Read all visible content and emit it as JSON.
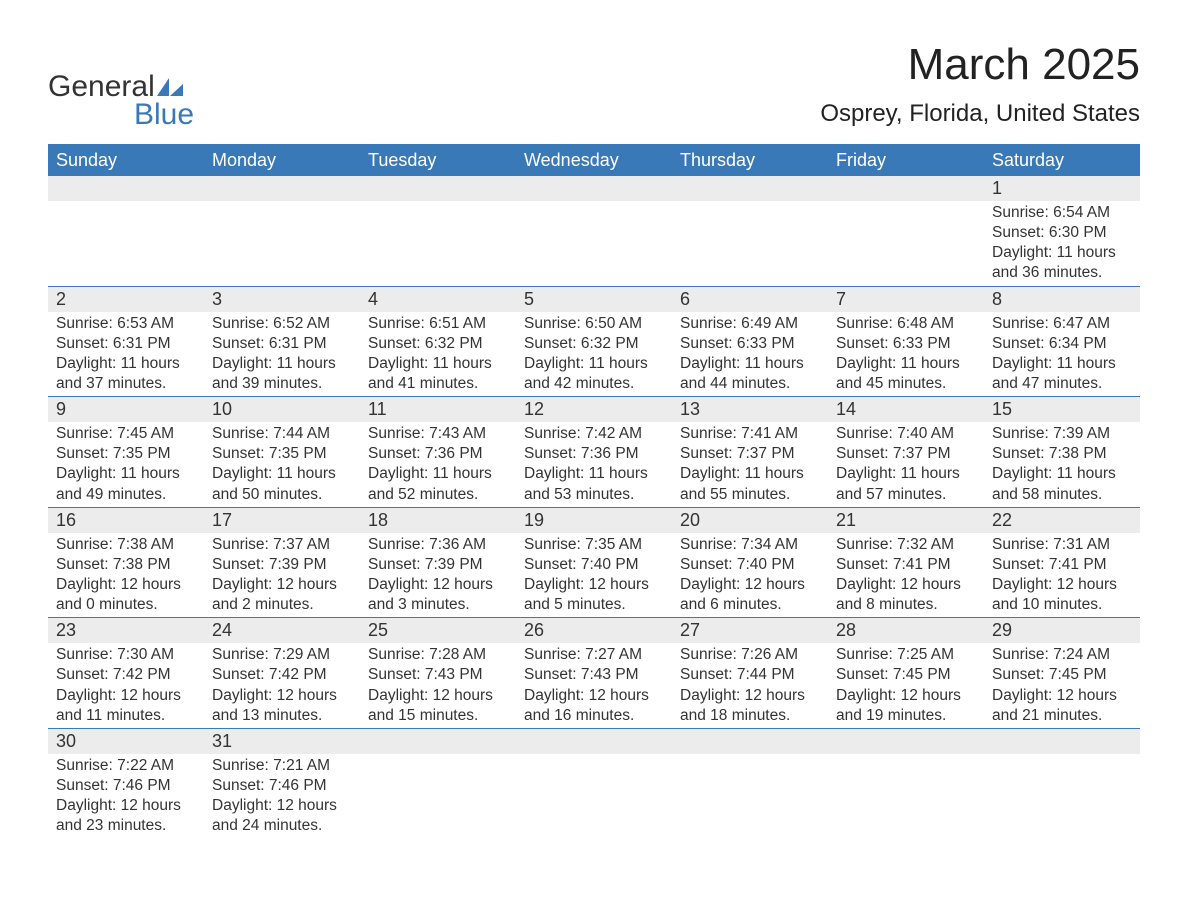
{
  "logo": {
    "word1": "General",
    "word2": "Blue",
    "text_color": "#333333",
    "accent_color": "#3a79b7"
  },
  "title": "March 2025",
  "subtitle": "Osprey, Florida, United States",
  "colors": {
    "header_bg": "#3a79b7",
    "header_text": "#ffffff",
    "daynum_bg": "#ececec",
    "body_text": "#333333",
    "border": "#3a79b7",
    "page_bg": "#ffffff"
  },
  "fonts": {
    "title_size_pt": 33,
    "subtitle_size_pt": 18,
    "header_size_pt": 14,
    "body_size_pt": 12
  },
  "week_headers": [
    "Sunday",
    "Monday",
    "Tuesday",
    "Wednesday",
    "Thursday",
    "Friday",
    "Saturday"
  ],
  "weeks": [
    [
      {
        "day": null
      },
      {
        "day": null
      },
      {
        "day": null
      },
      {
        "day": null
      },
      {
        "day": null
      },
      {
        "day": null
      },
      {
        "day": 1,
        "sunrise": "6:54 AM",
        "sunset": "6:30 PM",
        "daylight_hours": 11,
        "daylight_minutes": 36
      }
    ],
    [
      {
        "day": 2,
        "sunrise": "6:53 AM",
        "sunset": "6:31 PM",
        "daylight_hours": 11,
        "daylight_minutes": 37
      },
      {
        "day": 3,
        "sunrise": "6:52 AM",
        "sunset": "6:31 PM",
        "daylight_hours": 11,
        "daylight_minutes": 39
      },
      {
        "day": 4,
        "sunrise": "6:51 AM",
        "sunset": "6:32 PM",
        "daylight_hours": 11,
        "daylight_minutes": 41
      },
      {
        "day": 5,
        "sunrise": "6:50 AM",
        "sunset": "6:32 PM",
        "daylight_hours": 11,
        "daylight_minutes": 42
      },
      {
        "day": 6,
        "sunrise": "6:49 AM",
        "sunset": "6:33 PM",
        "daylight_hours": 11,
        "daylight_minutes": 44
      },
      {
        "day": 7,
        "sunrise": "6:48 AM",
        "sunset": "6:33 PM",
        "daylight_hours": 11,
        "daylight_minutes": 45
      },
      {
        "day": 8,
        "sunrise": "6:47 AM",
        "sunset": "6:34 PM",
        "daylight_hours": 11,
        "daylight_minutes": 47
      }
    ],
    [
      {
        "day": 9,
        "sunrise": "7:45 AM",
        "sunset": "7:35 PM",
        "daylight_hours": 11,
        "daylight_minutes": 49
      },
      {
        "day": 10,
        "sunrise": "7:44 AM",
        "sunset": "7:35 PM",
        "daylight_hours": 11,
        "daylight_minutes": 50
      },
      {
        "day": 11,
        "sunrise": "7:43 AM",
        "sunset": "7:36 PM",
        "daylight_hours": 11,
        "daylight_minutes": 52
      },
      {
        "day": 12,
        "sunrise": "7:42 AM",
        "sunset": "7:36 PM",
        "daylight_hours": 11,
        "daylight_minutes": 53
      },
      {
        "day": 13,
        "sunrise": "7:41 AM",
        "sunset": "7:37 PM",
        "daylight_hours": 11,
        "daylight_minutes": 55
      },
      {
        "day": 14,
        "sunrise": "7:40 AM",
        "sunset": "7:37 PM",
        "daylight_hours": 11,
        "daylight_minutes": 57
      },
      {
        "day": 15,
        "sunrise": "7:39 AM",
        "sunset": "7:38 PM",
        "daylight_hours": 11,
        "daylight_minutes": 58
      }
    ],
    [
      {
        "day": 16,
        "sunrise": "7:38 AM",
        "sunset": "7:38 PM",
        "daylight_hours": 12,
        "daylight_minutes": 0
      },
      {
        "day": 17,
        "sunrise": "7:37 AM",
        "sunset": "7:39 PM",
        "daylight_hours": 12,
        "daylight_minutes": 2
      },
      {
        "day": 18,
        "sunrise": "7:36 AM",
        "sunset": "7:39 PM",
        "daylight_hours": 12,
        "daylight_minutes": 3
      },
      {
        "day": 19,
        "sunrise": "7:35 AM",
        "sunset": "7:40 PM",
        "daylight_hours": 12,
        "daylight_minutes": 5
      },
      {
        "day": 20,
        "sunrise": "7:34 AM",
        "sunset": "7:40 PM",
        "daylight_hours": 12,
        "daylight_minutes": 6
      },
      {
        "day": 21,
        "sunrise": "7:32 AM",
        "sunset": "7:41 PM",
        "daylight_hours": 12,
        "daylight_minutes": 8
      },
      {
        "day": 22,
        "sunrise": "7:31 AM",
        "sunset": "7:41 PM",
        "daylight_hours": 12,
        "daylight_minutes": 10
      }
    ],
    [
      {
        "day": 23,
        "sunrise": "7:30 AM",
        "sunset": "7:42 PM",
        "daylight_hours": 12,
        "daylight_minutes": 11
      },
      {
        "day": 24,
        "sunrise": "7:29 AM",
        "sunset": "7:42 PM",
        "daylight_hours": 12,
        "daylight_minutes": 13
      },
      {
        "day": 25,
        "sunrise": "7:28 AM",
        "sunset": "7:43 PM",
        "daylight_hours": 12,
        "daylight_minutes": 15
      },
      {
        "day": 26,
        "sunrise": "7:27 AM",
        "sunset": "7:43 PM",
        "daylight_hours": 12,
        "daylight_minutes": 16
      },
      {
        "day": 27,
        "sunrise": "7:26 AM",
        "sunset": "7:44 PM",
        "daylight_hours": 12,
        "daylight_minutes": 18
      },
      {
        "day": 28,
        "sunrise": "7:25 AM",
        "sunset": "7:45 PM",
        "daylight_hours": 12,
        "daylight_minutes": 19
      },
      {
        "day": 29,
        "sunrise": "7:24 AM",
        "sunset": "7:45 PM",
        "daylight_hours": 12,
        "daylight_minutes": 21
      }
    ],
    [
      {
        "day": 30,
        "sunrise": "7:22 AM",
        "sunset": "7:46 PM",
        "daylight_hours": 12,
        "daylight_minutes": 23
      },
      {
        "day": 31,
        "sunrise": "7:21 AM",
        "sunset": "7:46 PM",
        "daylight_hours": 12,
        "daylight_minutes": 24
      },
      {
        "day": null
      },
      {
        "day": null
      },
      {
        "day": null
      },
      {
        "day": null
      },
      {
        "day": null
      }
    ]
  ],
  "labels": {
    "sunrise_prefix": "Sunrise: ",
    "sunset_prefix": "Sunset: ",
    "daylight_prefix": "Daylight: ",
    "hours_word": " hours",
    "and_word": "and ",
    "minutes_word": " minutes."
  }
}
